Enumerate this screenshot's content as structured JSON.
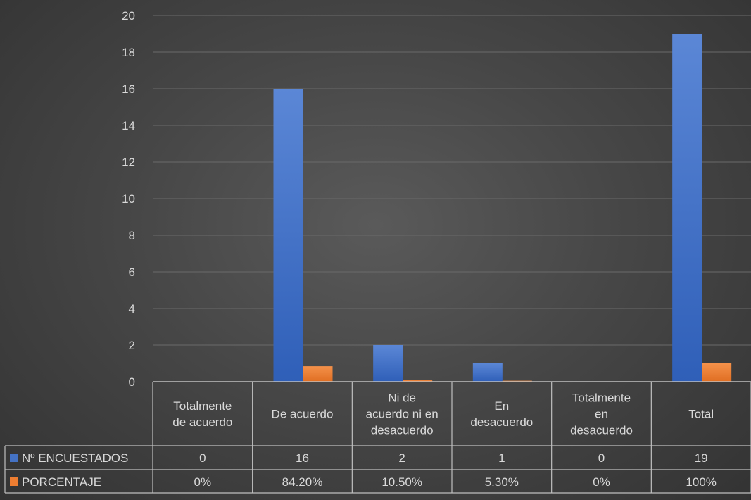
{
  "chart_data": {
    "type": "bar",
    "title": "",
    "xlabel": "",
    "ylabel": "",
    "ylim": [
      0,
      20
    ],
    "yticks": [
      0,
      2,
      4,
      6,
      8,
      10,
      12,
      14,
      16,
      18,
      20
    ],
    "grid": true,
    "legend": "data-table",
    "categories": [
      [
        "Totalmente",
        "de acuerdo"
      ],
      [
        "De acuerdo"
      ],
      [
        "Ni de",
        "acuerdo ni en",
        "desacuerdo"
      ],
      [
        "En",
        "desacuerdo"
      ],
      [
        "Totalmente",
        "en",
        "desacuerdo"
      ],
      [
        "Total"
      ]
    ],
    "series": [
      {
        "name": "Nº ENCUESTADOS",
        "color": "#4472c4",
        "values": [
          0,
          16,
          2,
          1,
          0,
          19
        ],
        "labels": [
          "0",
          "16",
          "2",
          "1",
          "0",
          "19"
        ]
      },
      {
        "name": "PORCENTAJE",
        "color": "#ed7d31",
        "values": [
          0,
          0.842,
          0.105,
          0.053,
          0,
          1
        ],
        "labels": [
          "0%",
          "84.20%",
          "10.50%",
          "5.30%",
          "0%",
          "100%"
        ]
      }
    ]
  }
}
